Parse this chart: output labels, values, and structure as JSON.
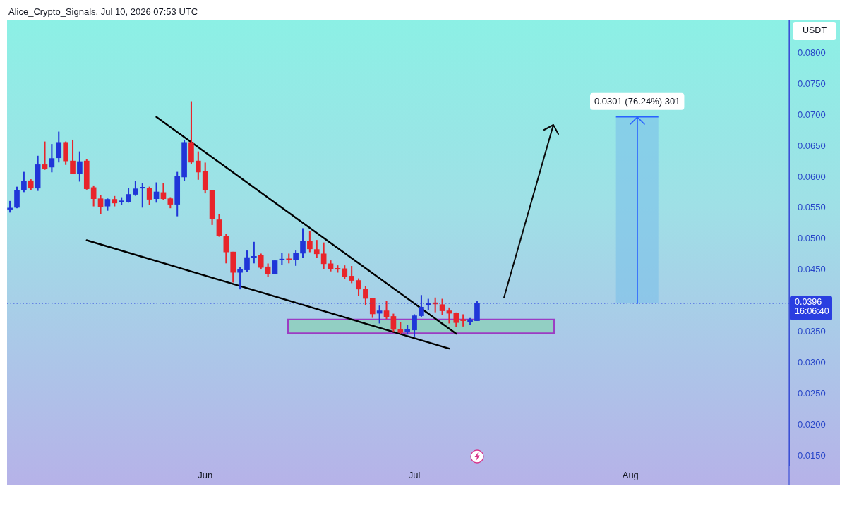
{
  "chart_data": {
    "type": "candlestick",
    "ylabel": "USDT",
    "annotations": [
      "Alice_Crypto_Signals, Jul 10, 2026 07:53 UTC",
      "16:06:40"
    ],
    "x": [
      "2026-05-04",
      "2026-05-05",
      "2026-05-06",
      "2026-05-07",
      "2026-05-08",
      "2026-05-09",
      "2026-05-10",
      "2026-05-11",
      "2026-05-12",
      "2026-05-13",
      "2026-05-14",
      "2026-05-15",
      "2026-05-16",
      "2026-05-17",
      "2026-05-18",
      "2026-05-19",
      "2026-05-20",
      "2026-05-21",
      "2026-05-22",
      "2026-05-23",
      "2026-05-24",
      "2026-05-25",
      "2026-05-26",
      "2026-05-27",
      "2026-05-28",
      "2026-05-29",
      "2026-05-30",
      "2026-05-31",
      "2026-06-01",
      "2026-06-02",
      "2026-06-03",
      "2026-06-04",
      "2026-06-05",
      "2026-06-06",
      "2026-06-07",
      "2026-06-08",
      "2026-06-09",
      "2026-06-10",
      "2026-06-11",
      "2026-06-12",
      "2026-06-13",
      "2026-06-14",
      "2026-06-15",
      "2026-06-16",
      "2026-06-17",
      "2026-06-18",
      "2026-06-19",
      "2026-06-20",
      "2026-06-21",
      "2026-06-22",
      "2026-06-23",
      "2026-06-24",
      "2026-06-25",
      "2026-06-26",
      "2026-06-27",
      "2026-06-28",
      "2026-06-29",
      "2026-06-30",
      "2026-07-01",
      "2026-07-02",
      "2026-07-03",
      "2026-07-04",
      "2026-07-05",
      "2026-07-06",
      "2026-07-07",
      "2026-07-08",
      "2026-07-09",
      "2026-07-10"
    ],
    "ohlc": [
      [
        0.0548,
        0.0561,
        0.0543,
        0.055
      ],
      [
        0.0551,
        0.0584,
        0.055,
        0.0579
      ],
      [
        0.0579,
        0.0608,
        0.0576,
        0.0593
      ],
      [
        0.0594,
        0.0596,
        0.0579,
        0.0582
      ],
      [
        0.0582,
        0.0634,
        0.0578,
        0.062
      ],
      [
        0.062,
        0.0657,
        0.0612,
        0.0614
      ],
      [
        0.0616,
        0.0653,
        0.0608,
        0.063
      ],
      [
        0.0631,
        0.0673,
        0.0624,
        0.0656
      ],
      [
        0.0656,
        0.0657,
        0.062,
        0.0626
      ],
      [
        0.0626,
        0.066,
        0.0605,
        0.0606
      ],
      [
        0.0605,
        0.0641,
        0.0593,
        0.0625
      ],
      [
        0.0626,
        0.0629,
        0.058,
        0.0581
      ],
      [
        0.0583,
        0.0586,
        0.0553,
        0.0565
      ],
      [
        0.0565,
        0.0571,
        0.0541,
        0.0552
      ],
      [
        0.0553,
        0.0565,
        0.0546,
        0.0564
      ],
      [
        0.0564,
        0.0569,
        0.0553,
        0.0558
      ],
      [
        0.056,
        0.0567,
        0.0555,
        0.0561
      ],
      [
        0.056,
        0.0582,
        0.0559,
        0.0572
      ],
      [
        0.0572,
        0.0593,
        0.057,
        0.0581
      ],
      [
        0.0582,
        0.059,
        0.0551,
        0.0583
      ],
      [
        0.0582,
        0.0584,
        0.0555,
        0.0564
      ],
      [
        0.0565,
        0.0591,
        0.0559,
        0.0576
      ],
      [
        0.0575,
        0.059,
        0.0563,
        0.0565
      ],
      [
        0.0565,
        0.0567,
        0.055,
        0.0556
      ],
      [
        0.0556,
        0.0608,
        0.0537,
        0.0601
      ],
      [
        0.06,
        0.066,
        0.0594,
        0.0656
      ],
      [
        0.0656,
        0.0722,
        0.0622,
        0.0624
      ],
      [
        0.0626,
        0.0641,
        0.0596,
        0.0608
      ],
      [
        0.0609,
        0.0623,
        0.0574,
        0.0579
      ],
      [
        0.0579,
        0.0579,
        0.0523,
        0.0532
      ],
      [
        0.0531,
        0.054,
        0.0504,
        0.0505
      ],
      [
        0.0505,
        0.0508,
        0.0461,
        0.0479
      ],
      [
        0.0479,
        0.0479,
        0.043,
        0.0446
      ],
      [
        0.0446,
        0.0454,
        0.0419,
        0.0451
      ],
      [
        0.045,
        0.0481,
        0.0447,
        0.047
      ],
      [
        0.047,
        0.0495,
        0.0461,
        0.0472
      ],
      [
        0.0474,
        0.0476,
        0.0451,
        0.0454
      ],
      [
        0.0455,
        0.046,
        0.0439,
        0.0444
      ],
      [
        0.0444,
        0.0466,
        0.0444,
        0.0465
      ],
      [
        0.0466,
        0.0477,
        0.0458,
        0.0467
      ],
      [
        0.0468,
        0.0476,
        0.0461,
        0.0466
      ],
      [
        0.0467,
        0.0481,
        0.0457,
        0.0477
      ],
      [
        0.0477,
        0.0517,
        0.047,
        0.0497
      ],
      [
        0.0497,
        0.0513,
        0.0479,
        0.0484
      ],
      [
        0.0483,
        0.0498,
        0.047,
        0.0476
      ],
      [
        0.0476,
        0.0494,
        0.0452,
        0.046
      ],
      [
        0.046,
        0.0465,
        0.0448,
        0.0452
      ],
      [
        0.0452,
        0.0457,
        0.0446,
        0.0451
      ],
      [
        0.0452,
        0.0457,
        0.0436,
        0.0439
      ],
      [
        0.044,
        0.0456,
        0.0429,
        0.0433
      ],
      [
        0.0433,
        0.0436,
        0.0408,
        0.0419
      ],
      [
        0.0419,
        0.0424,
        0.0394,
        0.0404
      ],
      [
        0.0404,
        0.0404,
        0.0373,
        0.0379
      ],
      [
        0.038,
        0.0392,
        0.0364,
        0.0384
      ],
      [
        0.0384,
        0.04,
        0.0371,
        0.0374
      ],
      [
        0.0375,
        0.0379,
        0.035,
        0.0354
      ],
      [
        0.0354,
        0.0365,
        0.0347,
        0.0349
      ],
      [
        0.035,
        0.0361,
        0.0346,
        0.0354
      ],
      [
        0.0353,
        0.0378,
        0.0343,
        0.0376
      ],
      [
        0.0376,
        0.0409,
        0.0374,
        0.039
      ],
      [
        0.0393,
        0.0403,
        0.0386,
        0.0396
      ],
      [
        0.0397,
        0.0405,
        0.0382,
        0.0395
      ],
      [
        0.0394,
        0.0403,
        0.0377,
        0.0384
      ],
      [
        0.0384,
        0.0389,
        0.0364,
        0.038
      ],
      [
        0.038,
        0.0381,
        0.0358,
        0.0365
      ],
      [
        0.037,
        0.0378,
        0.0359,
        0.0368
      ],
      [
        0.0366,
        0.0372,
        0.0362,
        0.037
      ],
      [
        0.0368,
        0.0399,
        0.0368,
        0.0396
      ]
    ],
    "colors": [
      "#2036d8",
      "#2036d8",
      "#2036d8",
      "#e8252b",
      "#2036d8",
      "#e8252b",
      "#2036d8",
      "#2036d8",
      "#e8252b",
      "#e8252b",
      "#2036d8",
      "#e8252b",
      "#e8252b",
      "#e8252b",
      "#2036d8",
      "#e8252b",
      "#2036d8",
      "#2036d8",
      "#2036d8",
      "#2036d8",
      "#e8252b",
      "#2036d8",
      "#e8252b",
      "#e8252b",
      "#2036d8",
      "#2036d8",
      "#e8252b",
      "#e8252b",
      "#e8252b",
      "#e8252b",
      "#e8252b",
      "#e8252b",
      "#e8252b",
      "#2036d8",
      "#2036d8",
      "#2036d8",
      "#e8252b",
      "#e8252b",
      "#2036d8",
      "#2036d8",
      "#e8252b",
      "#2036d8",
      "#2036d8",
      "#e8252b",
      "#e8252b",
      "#e8252b",
      "#e8252b",
      "#e8252b",
      "#e8252b",
      "#e8252b",
      "#e8252b",
      "#e8252b",
      "#e8252b",
      "#2036d8",
      "#e8252b",
      "#e8252b",
      "#e8252b",
      "#2036d8",
      "#2036d8",
      "#2036d8",
      "#2036d8",
      "#e8252b",
      "#e8252b",
      "#e8252b",
      "#e8252b",
      "#e8252b",
      "#2036d8",
      "#2036d8"
    ],
    "series": [
      {
        "type": "line",
        "x": [
          "2026-05-25",
          "2026-07-07"
        ],
        "values": [
          0.0697,
          0.0347
        ],
        "color": "#000000"
      },
      {
        "type": "line",
        "x": [
          "2026-05-15",
          "2026-07-06"
        ],
        "values": [
          0.0498,
          0.0323
        ],
        "color": "#000000"
      }
    ],
    "xlim": [
      "2026-05-03T14:00",
      "2026-08-23T18:00"
    ],
    "xticks": [
      {
        "value": "2026-06-01",
        "label": "Jun"
      },
      {
        "value": "2026-07-01",
        "label": "Jul"
      },
      {
        "value": "2026-08-01",
        "label": "Aug"
      }
    ],
    "ylim": [
      0.0134,
      0.0854
    ],
    "yticks": [
      {
        "value": 0.015,
        "label": "0.0150"
      },
      {
        "value": 0.02,
        "label": "0.0200"
      },
      {
        "value": 0.025,
        "label": "0.0250"
      },
      {
        "value": 0.03,
        "label": "0.0300"
      },
      {
        "value": 0.035,
        "label": "0.0350"
      },
      {
        "value": 0.045,
        "label": "0.0450"
      },
      {
        "value": 0.05,
        "label": "0.0500"
      },
      {
        "value": 0.055,
        "label": "0.0550"
      },
      {
        "value": 0.06,
        "label": "0.0600"
      },
      {
        "value": 0.065,
        "label": "0.0650"
      },
      {
        "value": 0.07,
        "label": "0.0700"
      },
      {
        "value": 0.075,
        "label": "0.0750"
      },
      {
        "value": 0.08,
        "label": "0.0800"
      }
    ],
    "ref_lines": [
      {
        "axis": "y",
        "value": 0.0396,
        "label": "0.0396",
        "color": "#2a3ee0",
        "line_style": "dotted"
      }
    ],
    "bands": [
      {
        "axis": "y",
        "from": 0.0348,
        "to": 0.037,
        "color": "#8fcfbf"
      },
      {
        "axis": "y",
        "from": 0.0396,
        "to": 0.0697,
        "label": "0.0301 (76.24%) 301",
        "color": "#7cbfea"
      }
    ]
  }
}
